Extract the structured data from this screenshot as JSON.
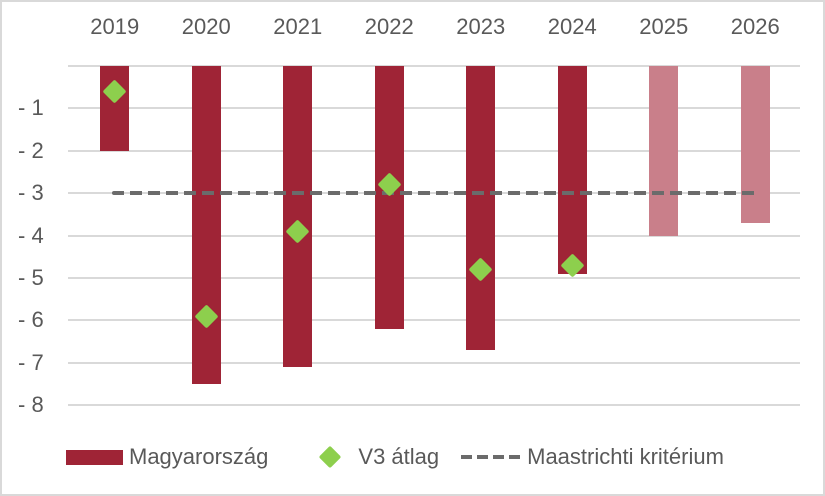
{
  "chart_data": {
    "type": "bar",
    "title": "",
    "xlabel": "",
    "ylabel": "",
    "x_axis_position": "top",
    "categories": [
      "2019",
      "2020",
      "2021",
      "2022",
      "2023",
      "2024",
      "2025",
      "2026"
    ],
    "series": [
      {
        "name": "Magyarország",
        "type": "bar",
        "color": "#9F2436",
        "forecast_color": "#C97F8A",
        "forecast_categories": [
          "2025",
          "2026"
        ],
        "values": [
          -2.0,
          -7.5,
          -7.1,
          -6.2,
          -6.7,
          -4.9,
          -4.0,
          -3.7
        ]
      },
      {
        "name": "V3 átlag",
        "type": "scatter",
        "marker": "diamond",
        "color": "#8DCF4D",
        "values": [
          -0.6,
          -5.9,
          -3.9,
          -2.8,
          -4.8,
          -4.7,
          null,
          null
        ]
      },
      {
        "name": "Maastrichti kritérium",
        "type": "line",
        "style": "dashed",
        "color": "#6B6B6B",
        "values": [
          -3,
          -3,
          -3,
          -3,
          -3,
          -3,
          -3,
          -3
        ]
      }
    ],
    "yticks": [
      "",
      "- 1",
      "- 2",
      "- 3",
      "- 4",
      "- 5",
      "- 6",
      "- 7",
      "- 8"
    ],
    "ylim": [
      -8,
      0
    ],
    "grid": true,
    "legend_position": "bottom"
  },
  "legend": {
    "items": [
      {
        "label": "Magyarország"
      },
      {
        "label": "V3 átlag"
      },
      {
        "label": "Maastrichti kritérium"
      }
    ]
  }
}
